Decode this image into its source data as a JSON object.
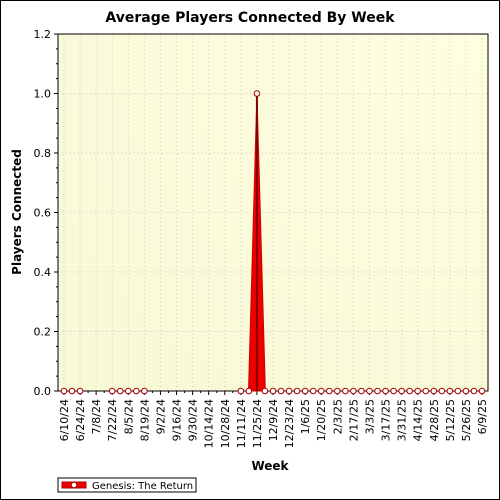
{
  "chart_data": {
    "type": "line",
    "title": "Average Players Connected By Week",
    "xlabel": "Week",
    "ylabel": "Players Connected",
    "ylim": [
      0,
      1.2
    ],
    "y_ticks": [
      "0.0",
      "0.2",
      "0.4",
      "0.6",
      "0.8",
      "1.0",
      "1.2"
    ],
    "x_tick_labels": [
      "6/10/24",
      "6/24/24",
      "7/8/24",
      "7/22/24",
      "8/5/24",
      "8/19/24",
      "9/2/24",
      "9/16/24",
      "9/30/24",
      "10/14/24",
      "10/28/24",
      "11/11/24",
      "11/25/24",
      "12/9/24",
      "12/23/24",
      "1/6/25",
      "1/20/25",
      "2/3/25",
      "2/17/25",
      "3/3/25",
      "3/17/25",
      "3/31/25",
      "4/14/25",
      "4/28/25",
      "5/12/25",
      "5/26/25",
      "6/9/25"
    ],
    "x": [
      "6/10/24",
      "6/17/24",
      "6/24/24",
      "7/1/24",
      "7/8/24",
      "7/15/24",
      "7/22/24",
      "7/29/24",
      "8/5/24",
      "8/12/24",
      "8/19/24",
      "8/26/24",
      "9/2/24",
      "9/9/24",
      "9/16/24",
      "9/23/24",
      "9/30/24",
      "10/7/24",
      "10/14/24",
      "10/21/24",
      "10/28/24",
      "11/4/24",
      "11/11/24",
      "11/18/24",
      "11/25/24",
      "12/2/24",
      "12/9/24",
      "12/16/24",
      "12/23/24",
      "12/30/24",
      "1/6/25",
      "1/13/25",
      "1/20/25",
      "1/27/25",
      "2/3/25",
      "2/10/25",
      "2/17/25",
      "2/24/25",
      "3/3/25",
      "3/10/25",
      "3/17/25",
      "3/24/25",
      "3/31/25",
      "4/7/25",
      "4/14/25",
      "4/21/25",
      "4/28/25",
      "5/5/25",
      "5/12/25",
      "5/19/25",
      "5/26/25",
      "6/2/25",
      "6/9/25"
    ],
    "series": [
      {
        "name": "Genesis: The Return",
        "color": "#cc0000",
        "values": [
          0,
          0,
          0,
          null,
          null,
          null,
          0,
          0,
          0,
          0,
          0,
          null,
          null,
          null,
          null,
          null,
          null,
          null,
          null,
          null,
          null,
          null,
          0,
          0,
          1.0,
          0,
          0,
          0,
          0,
          0,
          0,
          0,
          0,
          0,
          0,
          0,
          0,
          0,
          0,
          0,
          0,
          0,
          0,
          0,
          0,
          0,
          0,
          0,
          0,
          0,
          0,
          0,
          0
        ]
      }
    ],
    "grid": true,
    "legend_position": "bottom-left",
    "plot_background": "#ffffe0"
  }
}
